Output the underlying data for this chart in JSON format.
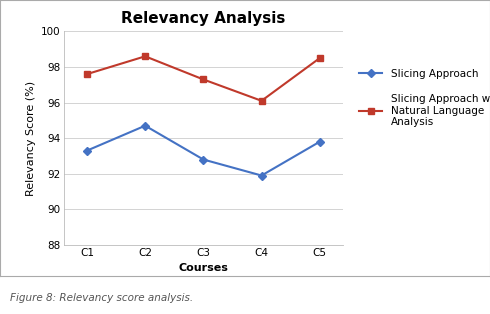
{
  "title": "Relevancy Analysis",
  "xlabel": "Courses",
  "ylabel": "Relevancy Score (%)",
  "categories": [
    "C1",
    "C2",
    "C3",
    "C4",
    "C5"
  ],
  "slicing_values": [
    93.3,
    94.7,
    92.8,
    91.9,
    93.8
  ],
  "nla_values": [
    97.6,
    98.6,
    97.3,
    96.1,
    98.5
  ],
  "slicing_color": "#4472C4",
  "nla_color": "#C0392B",
  "ylim": [
    88,
    100
  ],
  "yticks": [
    88,
    90,
    92,
    94,
    96,
    98,
    100
  ],
  "legend_slicing": "Slicing Approach",
  "legend_nla": "Slicing Approach with\nNatural Language\nAnalysis",
  "title_fontsize": 11,
  "axis_label_fontsize": 8,
  "tick_fontsize": 7.5,
  "legend_fontsize": 7.5,
  "caption": "Figure 8: Relevancy score analysis.",
  "bg_color": "#ffffff",
  "plot_bg_color": "#ffffff",
  "border_color": "#aaaaaa"
}
